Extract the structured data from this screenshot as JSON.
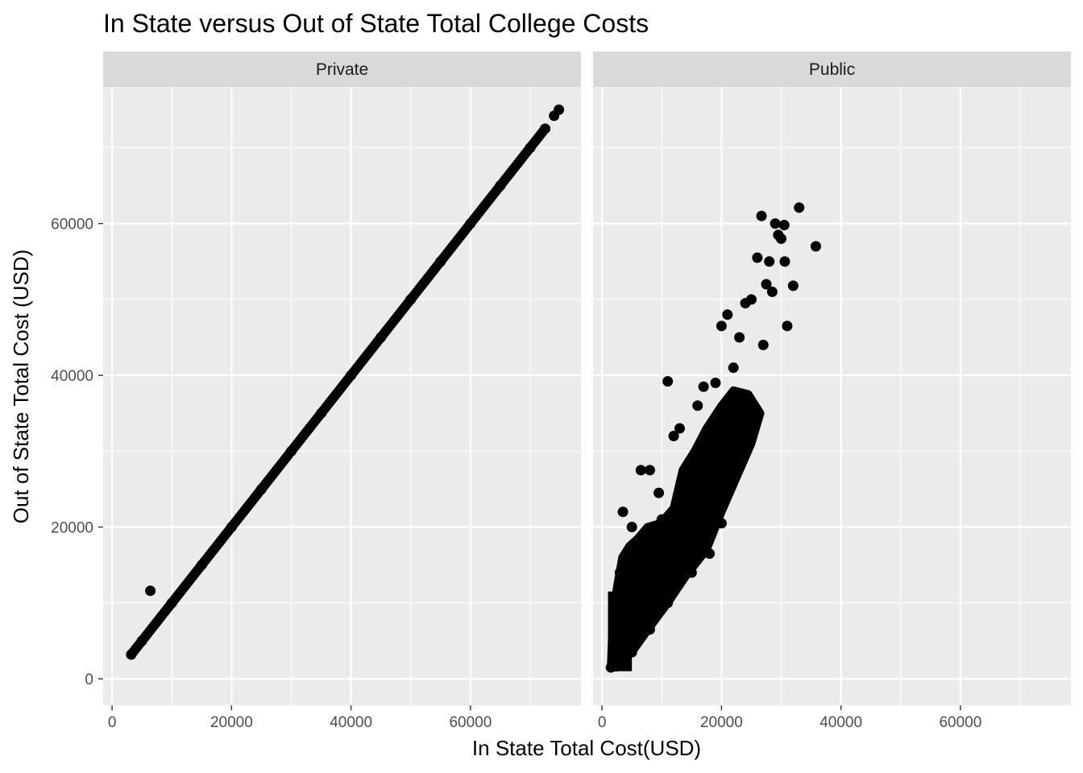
{
  "chart_data": {
    "type": "scatter",
    "title": "In State versus Out of State Total College Costs",
    "xlabel": "In State Total Cost(USD)",
    "ylabel": "Out of State Total Cost (USD)",
    "xlim": [
      -1500,
      78500
    ],
    "ylim": [
      -3500,
      78000
    ],
    "x_ticks": [
      0,
      20000,
      40000,
      60000
    ],
    "y_ticks": [
      0,
      20000,
      40000,
      60000
    ],
    "x_tick_labels": [
      "0",
      "20000",
      "40000",
      "60000"
    ],
    "y_tick_labels": [
      "0",
      "20000",
      "40000",
      "60000"
    ],
    "grid": true,
    "point_color": "#000000",
    "panel_background": "#ebebeb",
    "strip_background": "#d9d9d9",
    "panels": [
      {
        "label": "Private",
        "points": [
          [
            3200,
            3200
          ],
          [
            6400,
            11600
          ],
          [
            5000,
            5000
          ],
          [
            10000,
            10000
          ],
          [
            15000,
            15000
          ],
          [
            20000,
            20000
          ],
          [
            25000,
            25000
          ],
          [
            30000,
            30000
          ],
          [
            35000,
            35000
          ],
          [
            40000,
            40000
          ],
          [
            45000,
            45000
          ],
          [
            50000,
            50000
          ],
          [
            55000,
            55000
          ],
          [
            60000,
            60000
          ],
          [
            65000,
            65000
          ],
          [
            70000,
            70000
          ],
          [
            72500,
            72500
          ],
          [
            74000,
            74200
          ],
          [
            74800,
            75000
          ]
        ]
      },
      {
        "label": "Public",
        "points": [
          [
            1500,
            1500
          ],
          [
            2000,
            9000
          ],
          [
            3000,
            14000
          ],
          [
            3500,
            22000
          ],
          [
            5000,
            3500
          ],
          [
            5000,
            20000
          ],
          [
            6500,
            27500
          ],
          [
            8000,
            27500
          ],
          [
            8000,
            6500
          ],
          [
            9500,
            24500
          ],
          [
            10000,
            21000
          ],
          [
            11000,
            39200
          ],
          [
            11000,
            10000
          ],
          [
            12000,
            32000
          ],
          [
            13000,
            33000
          ],
          [
            14000,
            26000
          ],
          [
            15000,
            14000
          ],
          [
            16000,
            36000
          ],
          [
            17000,
            38500
          ],
          [
            18000,
            16500
          ],
          [
            19000,
            39000
          ],
          [
            20000,
            20500
          ],
          [
            20000,
            46500
          ],
          [
            21000,
            48000
          ],
          [
            22000,
            41000
          ],
          [
            23000,
            45000
          ],
          [
            24000,
            49500
          ],
          [
            25000,
            50000
          ],
          [
            26000,
            55500
          ],
          [
            26700,
            61000
          ],
          [
            27000,
            44000
          ],
          [
            27500,
            52000
          ],
          [
            28000,
            55000
          ],
          [
            28500,
            51000
          ],
          [
            29000,
            60000
          ],
          [
            29500,
            58500
          ],
          [
            30000,
            58000
          ],
          [
            30500,
            59800
          ],
          [
            30600,
            55000
          ],
          [
            31000,
            46500
          ],
          [
            32000,
            51800
          ],
          [
            33000,
            62100
          ],
          [
            35800,
            57000
          ]
        ]
      }
    ]
  }
}
